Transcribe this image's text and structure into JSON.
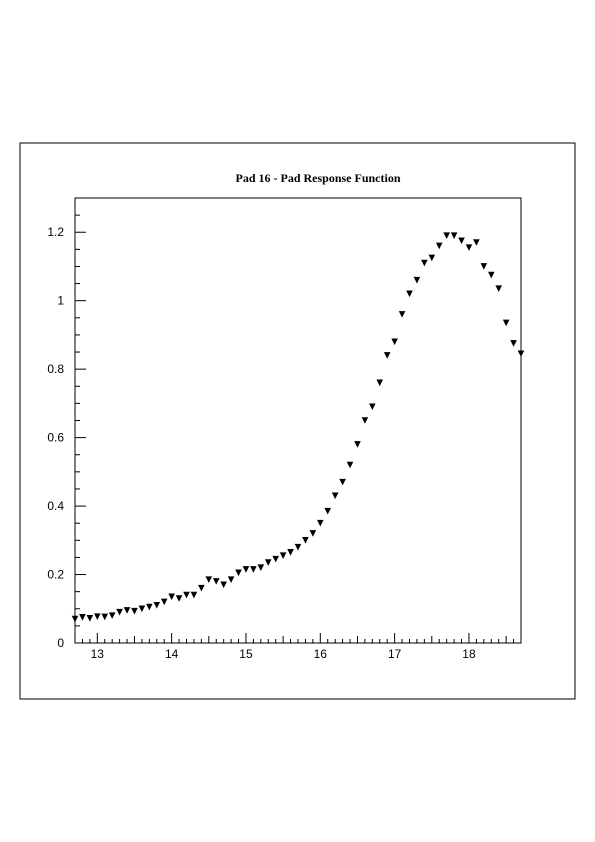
{
  "chart_data": {
    "type": "scatter",
    "title": "Pad 16 - Pad Response Function",
    "xlabel": "",
    "ylabel": "",
    "xlim": [
      12.7,
      18.7
    ],
    "ylim": [
      0,
      1.3
    ],
    "x_ticks": [
      "13",
      "14",
      "15",
      "16",
      "17",
      "18"
    ],
    "y_ticks": [
      "0",
      "0.2",
      "0.4",
      "0.6",
      "0.8",
      "1",
      "1.2"
    ],
    "grid": false,
    "marker": "inverted-triangle",
    "marker_color": "#000000",
    "series": [
      {
        "x": [
          12.7,
          12.8,
          12.9,
          13.0,
          13.1,
          13.2,
          13.3,
          13.4,
          13.5,
          13.6,
          13.7,
          13.8,
          13.9,
          14.0,
          14.1,
          14.2,
          14.3,
          14.4,
          14.5,
          14.6,
          14.7,
          14.8,
          14.9,
          15.0,
          15.1,
          15.2,
          15.3,
          15.4,
          15.5,
          15.6,
          15.7,
          15.8,
          15.9,
          16.0,
          16.1,
          16.2,
          16.3,
          16.4,
          16.5,
          16.6,
          16.7,
          16.8,
          16.9,
          17.0,
          17.1,
          17.2,
          17.3,
          17.4,
          17.5,
          17.6,
          17.7,
          17.8,
          17.9,
          18.0,
          18.1,
          18.2,
          18.3,
          18.4,
          18.5,
          18.6,
          18.7
        ],
        "y": [
          0.07,
          0.075,
          0.072,
          0.077,
          0.076,
          0.08,
          0.09,
          0.095,
          0.093,
          0.1,
          0.105,
          0.11,
          0.12,
          0.135,
          0.13,
          0.14,
          0.14,
          0.16,
          0.185,
          0.18,
          0.17,
          0.185,
          0.205,
          0.215,
          0.215,
          0.22,
          0.235,
          0.245,
          0.255,
          0.265,
          0.28,
          0.3,
          0.32,
          0.35,
          0.385,
          0.43,
          0.47,
          0.52,
          0.58,
          0.65,
          0.69,
          0.76,
          0.84,
          0.88,
          0.96,
          1.02,
          1.06,
          1.11,
          1.125,
          1.16,
          1.19,
          1.19,
          1.175,
          1.155,
          1.17,
          1.1,
          1.075,
          1.035,
          0.935,
          0.875,
          0.845
        ]
      }
    ]
  }
}
